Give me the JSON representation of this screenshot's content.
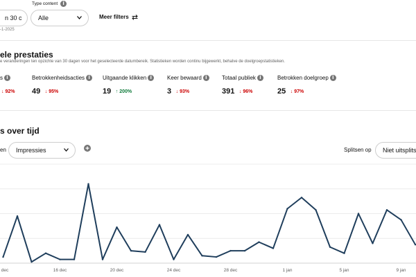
{
  "filters": {
    "date_select_value": "n 30 c",
    "date_range_text": "-1-2025",
    "type_content_label": "Type content",
    "type_content_value": "Alle",
    "more_filters_label": "Meer filters"
  },
  "overall": {
    "title": "ele prestaties",
    "subtitle": "e veranderingen ten opzichte van 30 dagen voor het geselecteerde datumbereik. Statistieken worden continu bijgewerkt, behalve de doelgroepstatistieken.",
    "metrics": [
      {
        "label": "s",
        "value": "",
        "change": "92%",
        "direction": "down"
      },
      {
        "label": "Betrokkenheidsacties",
        "value": "49",
        "change": "95%",
        "direction": "down"
      },
      {
        "label": "Uitgaande klikken",
        "value": "19",
        "change": "200%",
        "direction": "up"
      },
      {
        "label": "Keer bewaard",
        "value": "3",
        "change": "93%",
        "direction": "down"
      },
      {
        "label": "Totaal publiek",
        "value": "391",
        "change": "96%",
        "direction": "down"
      },
      {
        "label": "Betrokken doelgroep",
        "value": "25",
        "change": "97%",
        "direction": "down"
      }
    ]
  },
  "over_time": {
    "title": "s over tijd",
    "metric_prefix": "en",
    "metric_select_value": "Impressies",
    "split_label": "Splitsen op",
    "split_select_value": "Niet uitsplitse"
  },
  "chart_data": {
    "type": "line",
    "x": [
      "12 dec",
      "13 dec",
      "14 dec",
      "15 dec",
      "16 dec",
      "17 dec",
      "18 dec",
      "19 dec",
      "20 dec",
      "21 dec",
      "22 dec",
      "23 dec",
      "24 dec",
      "25 dec",
      "26 dec",
      "27 dec",
      "28 dec",
      "29 dec",
      "30 dec",
      "31 dec",
      "1 jan",
      "2 jan",
      "3 jan",
      "4 jan",
      "5 jan",
      "6 jan",
      "7 jan",
      "8 jan",
      "9 jan",
      "10 jan"
    ],
    "x_tick_labels": [
      "dec",
      "16 dec",
      "20 dec",
      "24 dec",
      "28 dec",
      "1 jan",
      "5 jan",
      "9 jan"
    ],
    "series": [
      {
        "values": [
          5,
          38,
          1,
          8,
          3,
          3,
          64,
          3,
          29,
          10,
          9,
          31,
          3,
          23,
          6,
          5,
          10,
          10,
          17,
          12,
          44,
          53,
          43,
          13,
          8,
          40,
          16,
          43,
          35,
          15
        ],
        "color": "#1f3e5c"
      }
    ],
    "ylim": [
      0,
      80
    ],
    "grid": true
  }
}
